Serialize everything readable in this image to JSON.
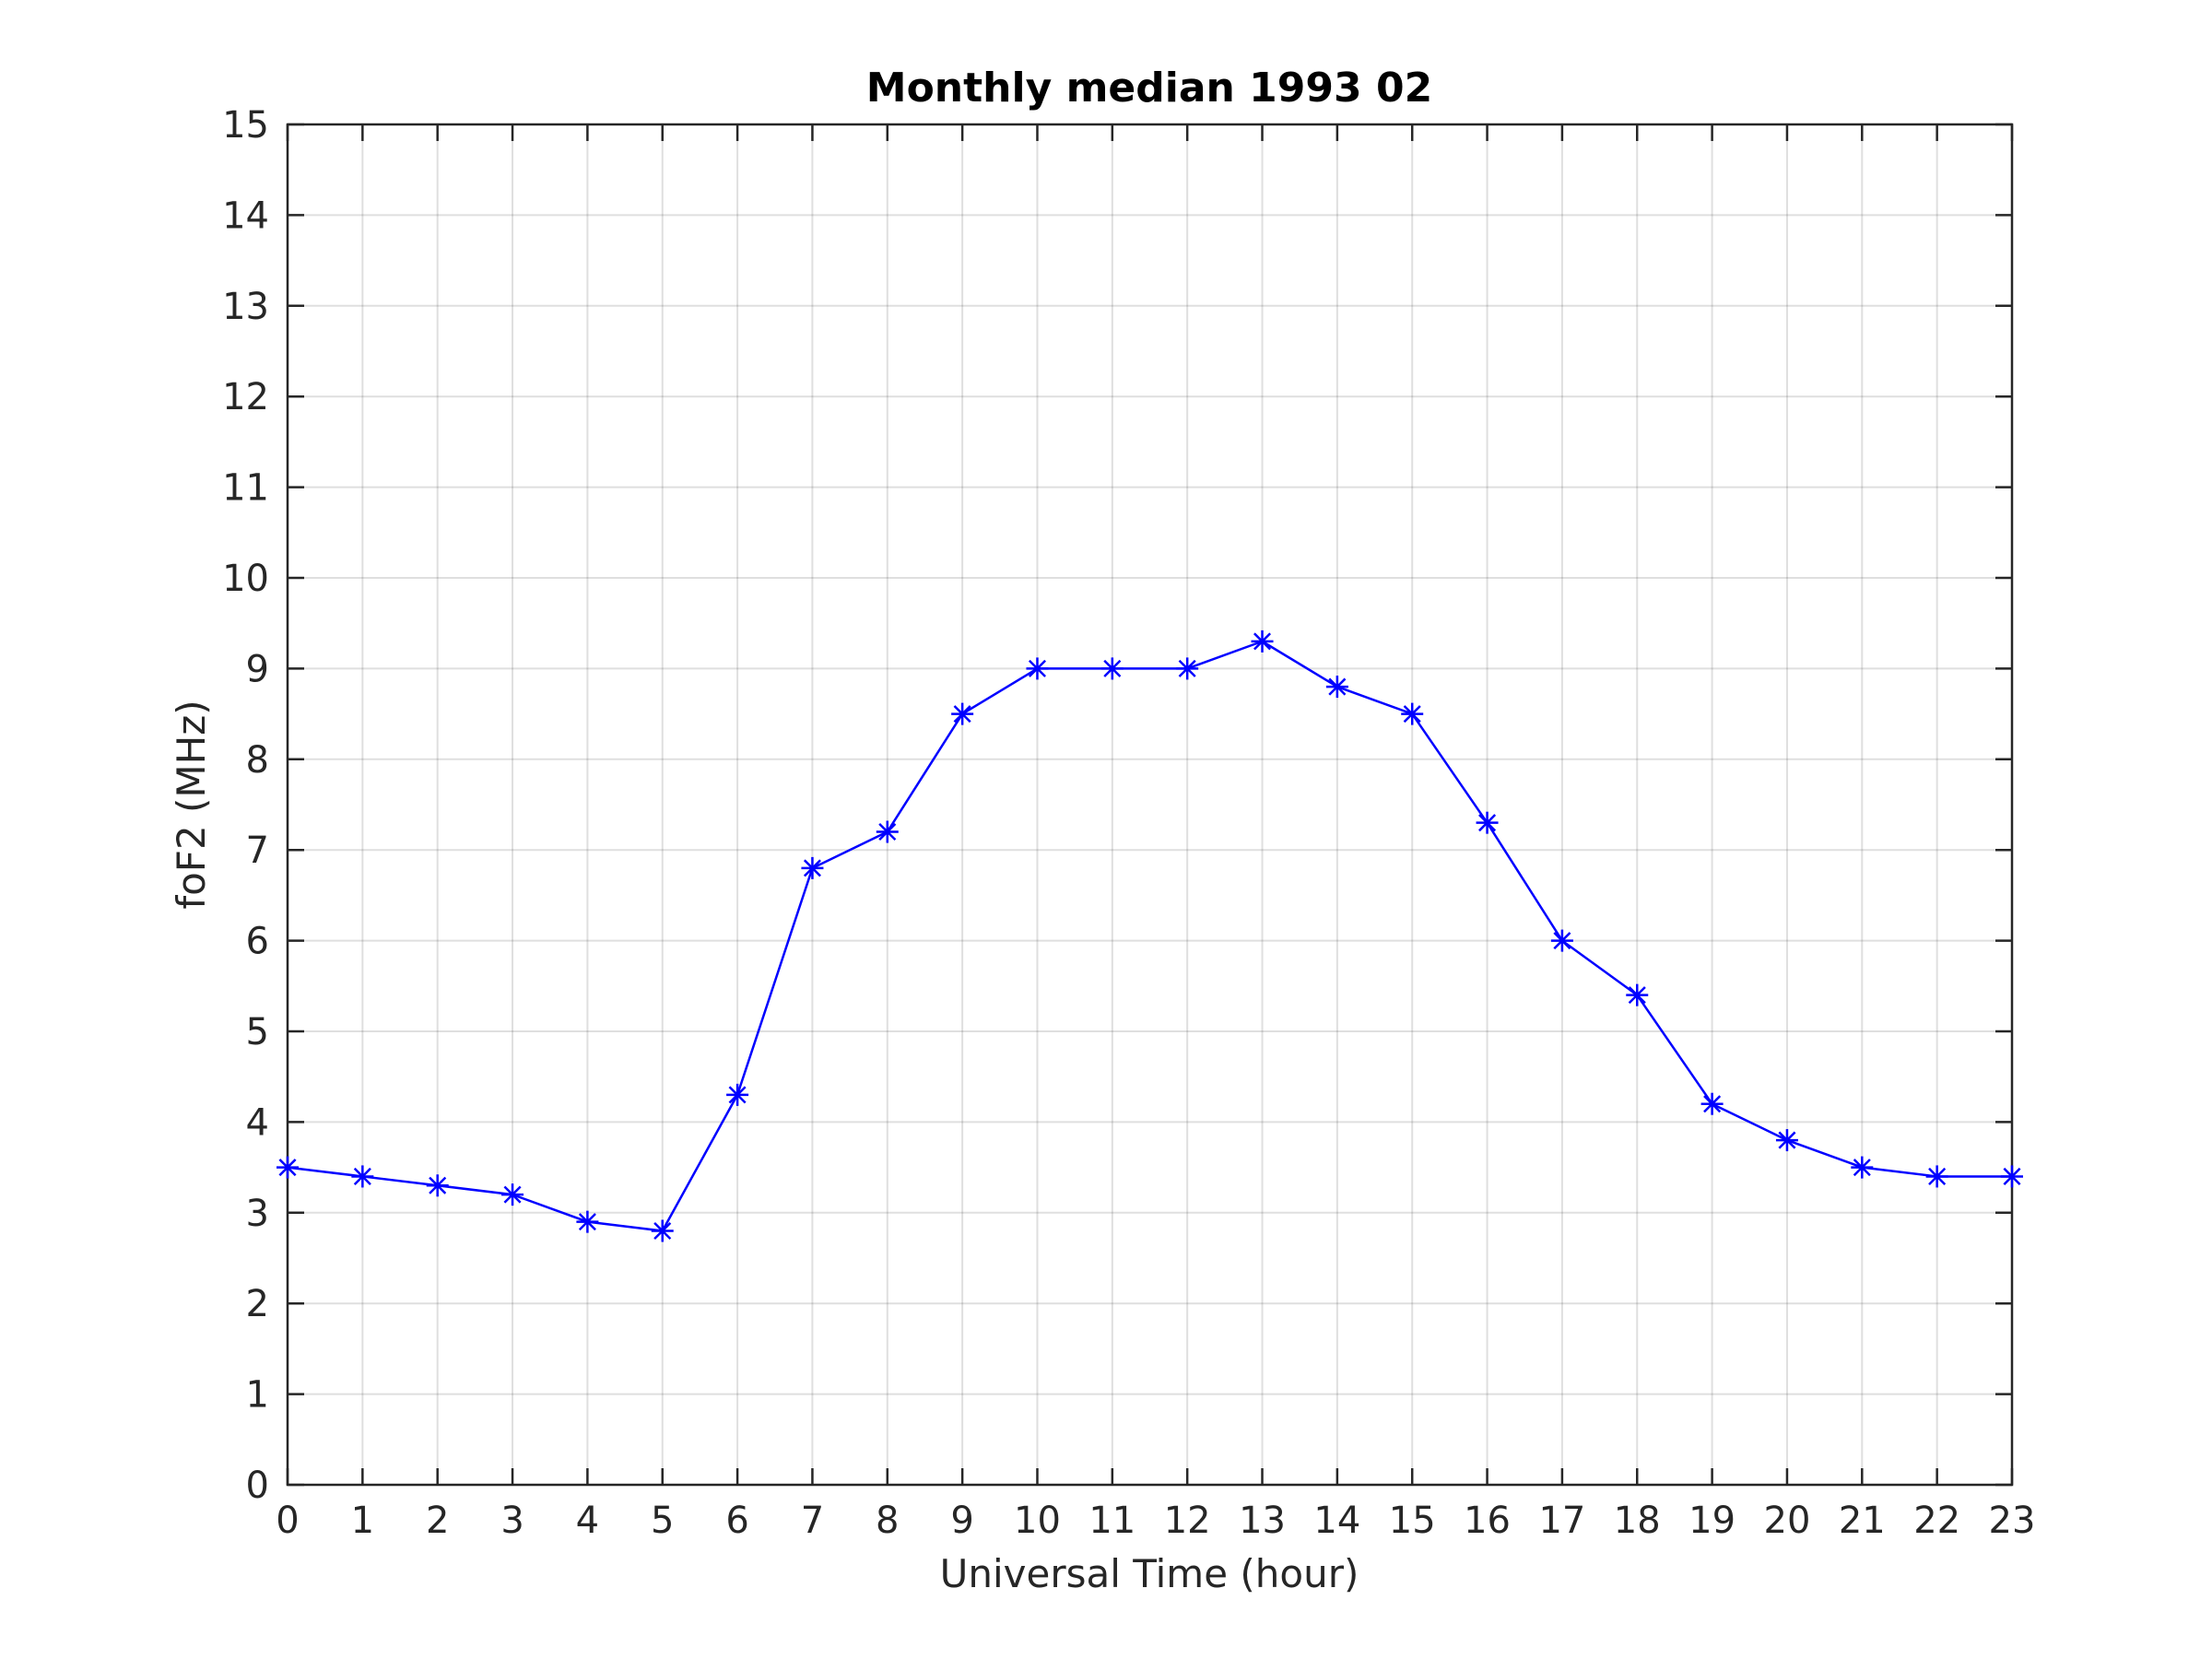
{
  "chart_data": {
    "type": "line",
    "title": "Monthly median 1993 02",
    "xlabel": "Universal Time (hour)",
    "ylabel": "foF2 (MHz)",
    "xlim": [
      0,
      23
    ],
    "ylim": [
      0,
      15
    ],
    "xticks": [
      0,
      1,
      2,
      3,
      4,
      5,
      6,
      7,
      8,
      9,
      10,
      11,
      12,
      13,
      14,
      15,
      16,
      17,
      18,
      19,
      20,
      21,
      22,
      23
    ],
    "yticks": [
      0,
      1,
      2,
      3,
      4,
      5,
      6,
      7,
      8,
      9,
      10,
      11,
      12,
      13,
      14,
      15
    ],
    "grid": true,
    "series": [
      {
        "color": "#0000ff",
        "marker": "asterisk",
        "x": [
          0,
          1,
          2,
          3,
          4,
          5,
          6,
          7,
          8,
          9,
          10,
          11,
          12,
          13,
          14,
          15,
          16,
          17,
          18,
          19,
          20,
          21,
          22,
          23
        ],
        "values": [
          3.5,
          3.4,
          3.3,
          3.2,
          2.9,
          2.8,
          4.3,
          6.8,
          7.2,
          8.5,
          9.0,
          9.0,
          9.0,
          9.3,
          8.8,
          8.5,
          7.3,
          6.0,
          5.4,
          4.2,
          3.8,
          3.5,
          3.4,
          3.4
        ]
      }
    ]
  }
}
